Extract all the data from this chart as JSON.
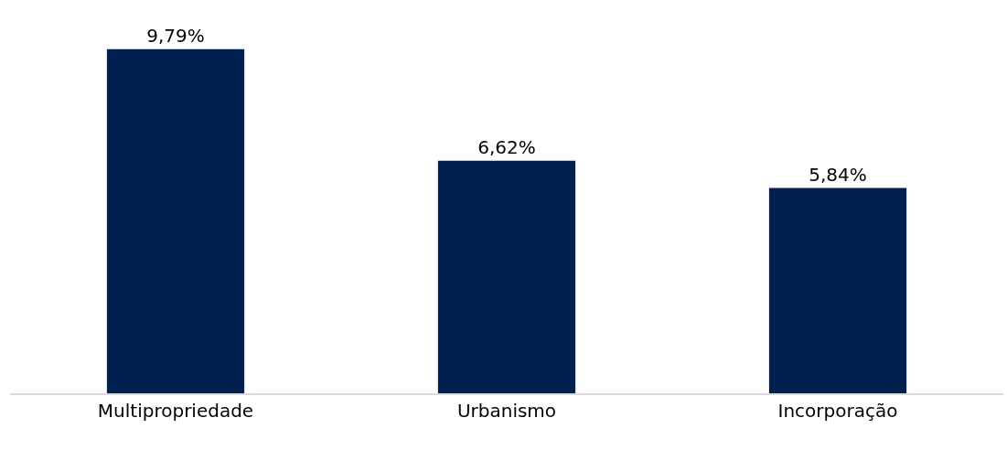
{
  "chart_data": {
    "type": "bar",
    "categories": [
      "Multipropriedade",
      "Urbanismo",
      "Incorporação"
    ],
    "values": [
      9.79,
      6.62,
      5.84
    ],
    "value_labels": [
      "9,79%",
      "6,62%",
      "5,84%"
    ],
    "color": "#002050"
  }
}
